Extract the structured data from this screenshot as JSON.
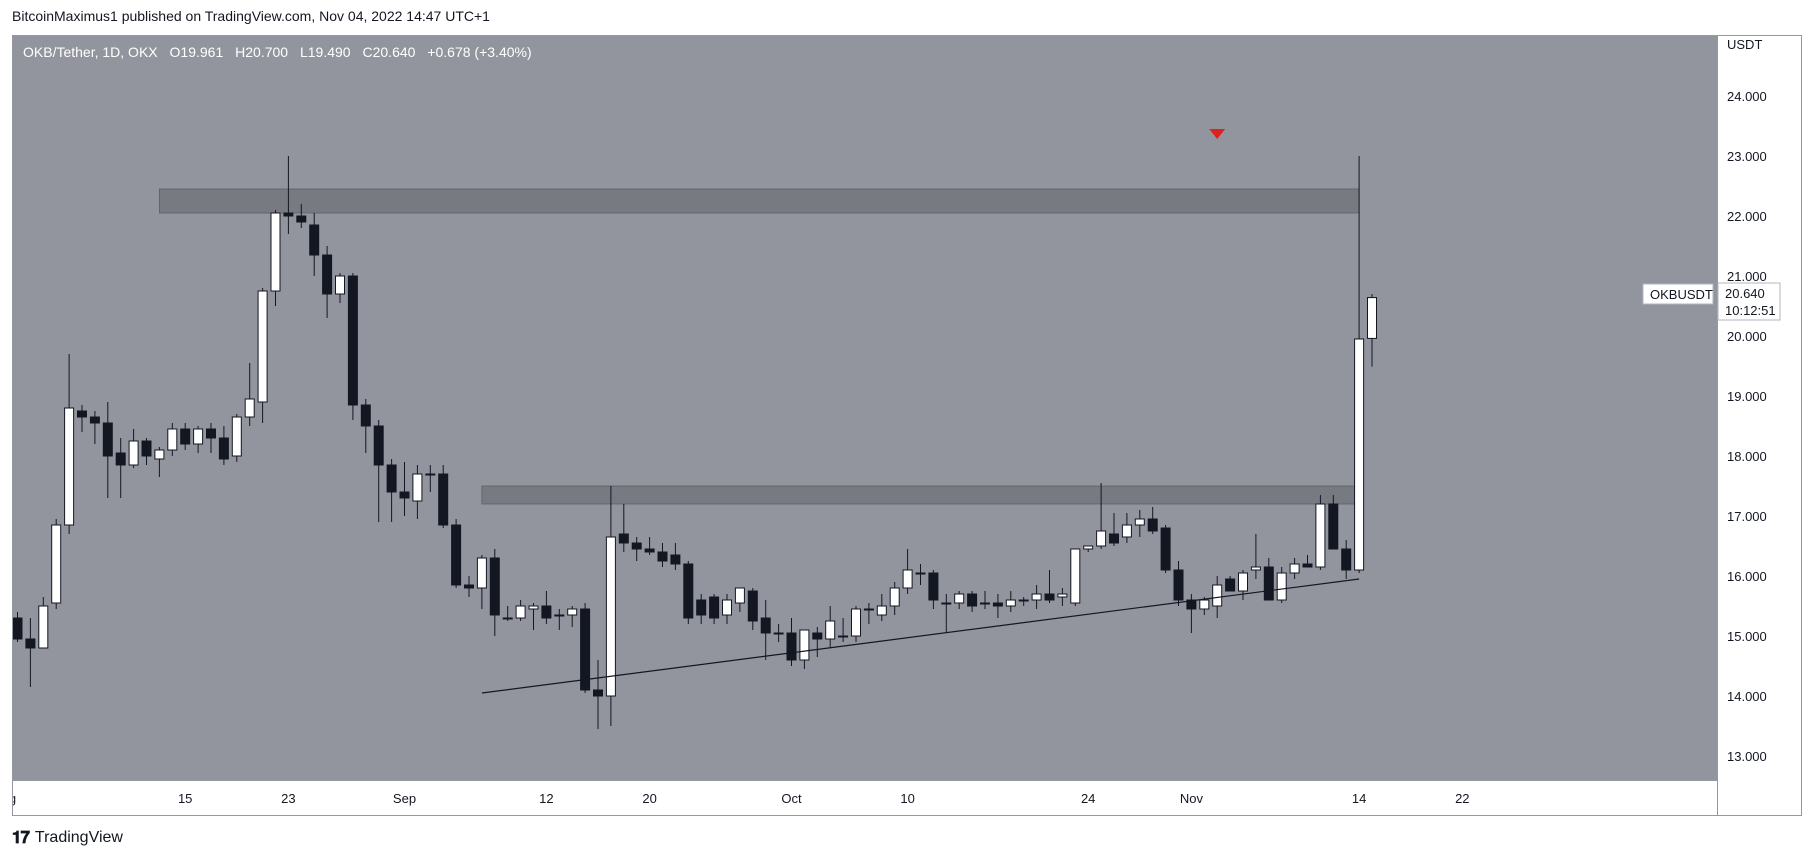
{
  "header": {
    "published": "BitcoinMaximus1 published on TradingView.com, Nov 04, 2022 14:47 UTC+1"
  },
  "footer": {
    "brand": "TradingView"
  },
  "legend": {
    "symbol": "OKB/Tether, 1D, OKX",
    "o_label": "O",
    "o_value": "19.961",
    "h_label": "H",
    "h_value": "20.700",
    "l_label": "L",
    "l_value": "19.490",
    "c_label": "C",
    "c_value": "20.640",
    "change": "+0.678 (+3.40%)"
  },
  "price_scale": {
    "currency": "USDT"
  },
  "last_price": {
    "ticker": "OKBUSDT",
    "price": "20.640",
    "countdown": "10:12:51"
  },
  "colors": {
    "plot_bg": "#93959e",
    "up_body": "#ffffff",
    "down_body": "#131722",
    "zone": "#6f7178",
    "marker": "#e0201c",
    "axis_bg": "#ffffff"
  },
  "chart_data": {
    "type": "candlestick",
    "ylim": [
      12.6,
      25.0
    ],
    "y_ticks": [
      "13.000",
      "14.000",
      "15.000",
      "16.000",
      "17.000",
      "18.000",
      "19.000",
      "20.000",
      "21.000",
      "22.000",
      "23.000",
      "24.000"
    ],
    "x_ticks": [
      "Aug",
      "15",
      "23",
      "Sep",
      "12",
      "20",
      "Oct",
      "10",
      "24",
      "Nov",
      "14",
      "22"
    ],
    "x_tick_days": [
      -1,
      13,
      21,
      30,
      41,
      49,
      60,
      69,
      83,
      91,
      104,
      112
    ],
    "day0": "Aug 02, 2022",
    "resistance_zones": [
      {
        "from": 22.05,
        "to": 22.45,
        "start_day": 11,
        "end_day": 104
      },
      {
        "from": 17.2,
        "to": 17.5,
        "start_day": 36,
        "end_day": 104
      }
    ],
    "trendline": {
      "start": [
        36,
        14.05
      ],
      "end": [
        104,
        15.95
      ]
    },
    "marker": {
      "type": "down-arrow",
      "day": 93,
      "price": 23.35
    },
    "candles": [
      {
        "o": 15.3,
        "h": 15.4,
        "l": 14.9,
        "c": 14.95
      },
      {
        "o": 14.95,
        "h": 15.3,
        "l": 14.15,
        "c": 14.8
      },
      {
        "o": 14.8,
        "h": 15.65,
        "l": 14.8,
        "c": 15.5
      },
      {
        "o": 15.55,
        "h": 16.95,
        "l": 15.45,
        "c": 16.85
      },
      {
        "o": 16.85,
        "h": 19.7,
        "l": 16.7,
        "c": 18.8
      },
      {
        "o": 18.75,
        "h": 18.85,
        "l": 18.4,
        "c": 18.65
      },
      {
        "o": 18.65,
        "h": 18.75,
        "l": 18.2,
        "c": 18.55
      },
      {
        "o": 18.55,
        "h": 18.9,
        "l": 17.3,
        "c": 18.0
      },
      {
        "o": 18.05,
        "h": 18.3,
        "l": 17.3,
        "c": 17.85
      },
      {
        "o": 17.85,
        "h": 18.45,
        "l": 17.8,
        "c": 18.25
      },
      {
        "o": 18.25,
        "h": 18.3,
        "l": 17.85,
        "c": 18.0
      },
      {
        "o": 17.95,
        "h": 18.15,
        "l": 17.65,
        "c": 18.1
      },
      {
        "o": 18.1,
        "h": 18.55,
        "l": 18.0,
        "c": 18.45
      },
      {
        "o": 18.45,
        "h": 18.55,
        "l": 18.1,
        "c": 18.2
      },
      {
        "o": 18.2,
        "h": 18.5,
        "l": 18.05,
        "c": 18.45
      },
      {
        "o": 18.45,
        "h": 18.55,
        "l": 18.05,
        "c": 18.3
      },
      {
        "o": 18.3,
        "h": 18.5,
        "l": 17.85,
        "c": 17.95
      },
      {
        "o": 18.0,
        "h": 18.7,
        "l": 17.9,
        "c": 18.65
      },
      {
        "o": 18.65,
        "h": 19.55,
        "l": 18.5,
        "c": 18.95
      },
      {
        "o": 18.9,
        "h": 20.8,
        "l": 18.55,
        "c": 20.75
      },
      {
        "o": 20.75,
        "h": 22.1,
        "l": 20.5,
        "c": 22.05
      },
      {
        "o": 22.05,
        "h": 23.0,
        "l": 21.7,
        "c": 22.0
      },
      {
        "o": 22.0,
        "h": 22.2,
        "l": 21.8,
        "c": 21.9
      },
      {
        "o": 21.85,
        "h": 22.05,
        "l": 21.0,
        "c": 21.35
      },
      {
        "o": 21.35,
        "h": 21.5,
        "l": 20.3,
        "c": 20.7
      },
      {
        "o": 20.7,
        "h": 21.05,
        "l": 20.55,
        "c": 21.0
      },
      {
        "o": 21.0,
        "h": 21.05,
        "l": 18.6,
        "c": 18.85
      },
      {
        "o": 18.85,
        "h": 18.95,
        "l": 18.05,
        "c": 18.5
      },
      {
        "o": 18.5,
        "h": 18.6,
        "l": 16.9,
        "c": 17.85
      },
      {
        "o": 17.85,
        "h": 17.95,
        "l": 16.9,
        "c": 17.4
      },
      {
        "o": 17.4,
        "h": 17.9,
        "l": 17.0,
        "c": 17.3
      },
      {
        "o": 17.25,
        "h": 17.85,
        "l": 16.95,
        "c": 17.7
      },
      {
        "o": 17.7,
        "h": 17.85,
        "l": 17.4,
        "c": 17.7
      },
      {
        "o": 17.7,
        "h": 17.85,
        "l": 16.8,
        "c": 16.85
      },
      {
        "o": 16.85,
        "h": 16.95,
        "l": 15.8,
        "c": 15.85
      },
      {
        "o": 15.85,
        "h": 16.0,
        "l": 15.65,
        "c": 15.8
      },
      {
        "o": 15.8,
        "h": 16.35,
        "l": 15.45,
        "c": 16.3
      },
      {
        "o": 16.3,
        "h": 16.45,
        "l": 15.0,
        "c": 15.35
      },
      {
        "o": 15.3,
        "h": 15.5,
        "l": 15.25,
        "c": 15.3
      },
      {
        "o": 15.3,
        "h": 15.6,
        "l": 15.25,
        "c": 15.5
      },
      {
        "o": 15.45,
        "h": 15.55,
        "l": 15.1,
        "c": 15.5
      },
      {
        "o": 15.5,
        "h": 15.75,
        "l": 15.2,
        "c": 15.3
      },
      {
        "o": 15.35,
        "h": 15.45,
        "l": 15.1,
        "c": 15.35
      },
      {
        "o": 15.35,
        "h": 15.5,
        "l": 15.15,
        "c": 15.45
      },
      {
        "o": 15.45,
        "h": 15.55,
        "l": 14.05,
        "c": 14.1
      },
      {
        "o": 14.1,
        "h": 14.6,
        "l": 13.45,
        "c": 14.0
      },
      {
        "o": 14.0,
        "h": 17.5,
        "l": 13.5,
        "c": 16.65
      },
      {
        "o": 16.7,
        "h": 17.2,
        "l": 16.4,
        "c": 16.55
      },
      {
        "o": 16.55,
        "h": 16.65,
        "l": 16.25,
        "c": 16.45
      },
      {
        "o": 16.45,
        "h": 16.65,
        "l": 16.35,
        "c": 16.4
      },
      {
        "o": 16.4,
        "h": 16.55,
        "l": 16.15,
        "c": 16.25
      },
      {
        "o": 16.35,
        "h": 16.55,
        "l": 16.1,
        "c": 16.2
      },
      {
        "o": 16.2,
        "h": 16.25,
        "l": 15.2,
        "c": 15.3
      },
      {
        "o": 15.6,
        "h": 15.7,
        "l": 15.2,
        "c": 15.35
      },
      {
        "o": 15.65,
        "h": 15.7,
        "l": 15.2,
        "c": 15.3
      },
      {
        "o": 15.35,
        "h": 15.7,
        "l": 15.2,
        "c": 15.6
      },
      {
        "o": 15.55,
        "h": 15.8,
        "l": 15.4,
        "c": 15.8
      },
      {
        "o": 15.75,
        "h": 15.8,
        "l": 15.1,
        "c": 15.25
      },
      {
        "o": 15.3,
        "h": 15.6,
        "l": 14.6,
        "c": 15.05
      },
      {
        "o": 15.05,
        "h": 15.2,
        "l": 14.9,
        "c": 15.05
      },
      {
        "o": 15.05,
        "h": 15.3,
        "l": 14.5,
        "c": 14.6
      },
      {
        "o": 14.6,
        "h": 15.05,
        "l": 14.45,
        "c": 15.1
      },
      {
        "o": 15.05,
        "h": 15.15,
        "l": 14.65,
        "c": 14.95
      },
      {
        "o": 14.95,
        "h": 15.5,
        "l": 14.8,
        "c": 15.25
      },
      {
        "o": 15.0,
        "h": 15.3,
        "l": 14.9,
        "c": 15.0
      },
      {
        "o": 15.0,
        "h": 15.5,
        "l": 14.9,
        "c": 15.45
      },
      {
        "o": 15.45,
        "h": 15.55,
        "l": 15.2,
        "c": 15.45
      },
      {
        "o": 15.35,
        "h": 15.7,
        "l": 15.25,
        "c": 15.5
      },
      {
        "o": 15.5,
        "h": 15.9,
        "l": 15.35,
        "c": 15.8
      },
      {
        "o": 15.8,
        "h": 16.45,
        "l": 15.7,
        "c": 16.1
      },
      {
        "o": 16.05,
        "h": 16.2,
        "l": 15.85,
        "c": 16.05
      },
      {
        "o": 16.05,
        "h": 16.1,
        "l": 15.45,
        "c": 15.6
      },
      {
        "o": 15.55,
        "h": 15.7,
        "l": 15.05,
        "c": 15.55
      },
      {
        "o": 15.55,
        "h": 15.75,
        "l": 15.45,
        "c": 15.7
      },
      {
        "o": 15.7,
        "h": 15.75,
        "l": 15.4,
        "c": 15.5
      },
      {
        "o": 15.55,
        "h": 15.75,
        "l": 15.45,
        "c": 15.55
      },
      {
        "o": 15.55,
        "h": 15.7,
        "l": 15.3,
        "c": 15.5
      },
      {
        "o": 15.5,
        "h": 15.75,
        "l": 15.4,
        "c": 15.6
      },
      {
        "o": 15.6,
        "h": 15.65,
        "l": 15.5,
        "c": 15.6
      },
      {
        "o": 15.6,
        "h": 15.85,
        "l": 15.45,
        "c": 15.7
      },
      {
        "o": 15.7,
        "h": 16.1,
        "l": 15.55,
        "c": 15.6
      },
      {
        "o": 15.65,
        "h": 15.8,
        "l": 15.5,
        "c": 15.7
      },
      {
        "o": 15.55,
        "h": 16.45,
        "l": 15.5,
        "c": 16.45
      },
      {
        "o": 16.45,
        "h": 16.5,
        "l": 16.4,
        "c": 16.5
      },
      {
        "o": 16.5,
        "h": 17.55,
        "l": 16.45,
        "c": 16.75
      },
      {
        "o": 16.7,
        "h": 17.05,
        "l": 16.5,
        "c": 16.55
      },
      {
        "o": 16.65,
        "h": 17.05,
        "l": 16.55,
        "c": 16.85
      },
      {
        "o": 16.85,
        "h": 17.1,
        "l": 16.65,
        "c": 16.95
      },
      {
        "o": 16.95,
        "h": 17.15,
        "l": 16.7,
        "c": 16.75
      },
      {
        "o": 16.8,
        "h": 16.85,
        "l": 16.05,
        "c": 16.1
      },
      {
        "o": 16.1,
        "h": 16.25,
        "l": 15.5,
        "c": 15.6
      },
      {
        "o": 15.6,
        "h": 15.7,
        "l": 15.05,
        "c": 15.45
      },
      {
        "o": 15.45,
        "h": 15.65,
        "l": 15.35,
        "c": 15.6
      },
      {
        "o": 15.5,
        "h": 16.0,
        "l": 15.3,
        "c": 15.85
      },
      {
        "o": 15.95,
        "h": 16.0,
        "l": 15.75,
        "c": 15.75
      },
      {
        "o": 15.75,
        "h": 16.1,
        "l": 15.6,
        "c": 16.05
      },
      {
        "o": 16.1,
        "h": 16.7,
        "l": 15.95,
        "c": 16.15
      },
      {
        "o": 16.15,
        "h": 16.3,
        "l": 15.65,
        "c": 15.6
      },
      {
        "o": 15.6,
        "h": 16.15,
        "l": 15.55,
        "c": 16.05
      },
      {
        "o": 16.05,
        "h": 16.3,
        "l": 15.95,
        "c": 16.2
      },
      {
        "o": 16.2,
        "h": 16.35,
        "l": 16.15,
        "c": 16.15
      },
      {
        "o": 16.15,
        "h": 17.35,
        "l": 16.1,
        "c": 17.2
      },
      {
        "o": 17.2,
        "h": 17.35,
        "l": 16.45,
        "c": 16.45
      },
      {
        "o": 16.45,
        "h": 16.6,
        "l": 15.95,
        "c": 16.1
      },
      {
        "o": 16.1,
        "h": 23.0,
        "l": 16.05,
        "c": 19.95
      },
      {
        "o": 19.96,
        "h": 20.7,
        "l": 19.49,
        "c": 20.64
      }
    ]
  }
}
